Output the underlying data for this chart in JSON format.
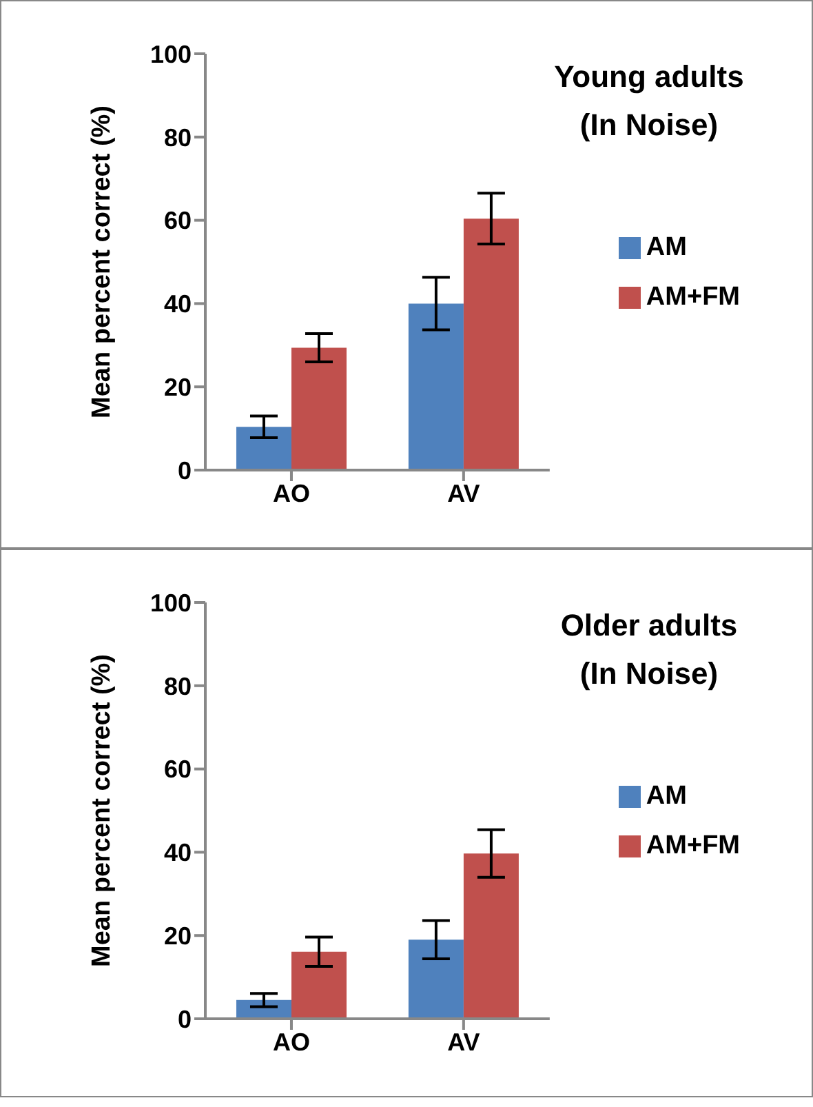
{
  "chart_data": [
    {
      "type": "bar",
      "title": "Young adults\n(In Noise)",
      "ylabel": "Mean percent correct (%)",
      "categories": [
        "AO",
        "AV"
      ],
      "series": [
        {
          "name": "AM",
          "color": "#4f81bd",
          "values": [
            10.4,
            40
          ],
          "errors": [
            2.6,
            6.3
          ]
        },
        {
          "name": "AM+FM",
          "color": "#c0504d",
          "values": [
            29.4,
            60.4
          ],
          "errors": [
            3.4,
            6.1
          ]
        }
      ],
      "ylim": [
        0,
        100
      ],
      "yticks": [
        0,
        20,
        40,
        60,
        80,
        100
      ],
      "grid": false,
      "legend": "right"
    },
    {
      "type": "bar",
      "title": "Older adults\n(In Noise)",
      "ylabel": "Mean percent correct (%)",
      "categories": [
        "AO",
        "AV"
      ],
      "series": [
        {
          "name": "AM",
          "color": "#4f81bd",
          "values": [
            4.5,
            19
          ],
          "errors": [
            1.6,
            4.6
          ]
        },
        {
          "name": "AM+FM",
          "color": "#c0504d",
          "values": [
            16.1,
            39.7
          ],
          "errors": [
            3.5,
            5.7
          ]
        }
      ],
      "ylim": [
        0,
        100
      ],
      "yticks": [
        0,
        20,
        40,
        60,
        80,
        100
      ],
      "grid": false,
      "legend": "right"
    }
  ]
}
